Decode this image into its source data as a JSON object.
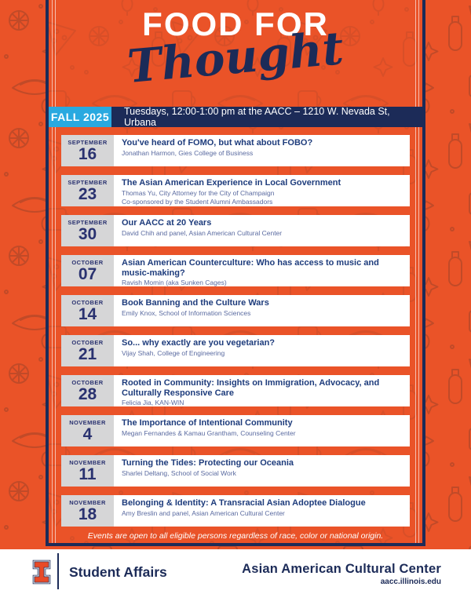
{
  "header": {
    "title_line1": "FOOD FOR",
    "title_line2": "Thought"
  },
  "schedule_bar": {
    "term": "FALL 2025",
    "details": "Tuesdays, 12:00-1:00 pm at the AACC – 1210 W. Nevada St, Urbana"
  },
  "events": [
    {
      "month": "SEPTEMBER",
      "day": "16",
      "title": "You've heard of FOMO, but what about FOBO?",
      "speakers": [
        "Jonathan Harmon, Gies College of Business"
      ]
    },
    {
      "month": "SEPTEMBER",
      "day": "23",
      "title": "The Asian American Experience in Local Government",
      "speakers": [
        "Thomas Yu, City Attorney for the City of Champaign",
        "Co-sponsored by the Student Alumni Ambassadors"
      ]
    },
    {
      "month": "SEPTEMBER",
      "day": "30",
      "title": "Our AACC at 20 Years",
      "speakers": [
        "David Chih and panel, Asian American Cultural Center"
      ]
    },
    {
      "month": "OCTOBER",
      "day": "07",
      "title": "Asian American Counterculture: Who has access to music and music-making?",
      "speakers": [
        "Ravish Momin (aka Sunken Cages)"
      ]
    },
    {
      "month": "OCTOBER",
      "day": "14",
      "title": "Book Banning and the Culture Wars",
      "speakers": [
        "Emily Knox, School of Information Sciences"
      ]
    },
    {
      "month": "OCTOBER",
      "day": "21",
      "title": "So... why exactly are you vegetarian?",
      "speakers": [
        "Vijay Shah, College of Engineering"
      ]
    },
    {
      "month": "OCTOBER",
      "day": "28",
      "title": "Rooted in Community: Insights on Immigration, Advocacy, and Culturally Responsive Care",
      "speakers": [
        "Felicia Jia, KAN-WIN"
      ]
    },
    {
      "month": "NOVEMBER",
      "day": "4",
      "title": "The Importance of Intentional Community",
      "speakers": [
        "Megan Fernandes & Kamau Grantham, Counseling Center"
      ]
    },
    {
      "month": "NOVEMBER",
      "day": "11",
      "title": "Turning the Tides: Protecting our Oceania",
      "speakers": [
        "Sharlei Deltang, School of Social Work"
      ]
    },
    {
      "month": "NOVEMBER",
      "day": "18",
      "title": "Belonging & Identity: A Transracial Asian Adoptee Dialogue",
      "speakers": [
        "Amy Breslin and panel, Asian American Cultural Center"
      ]
    }
  ],
  "footnote": "Events are open to all eligible persons regardless of race, color or national origin.",
  "footer": {
    "student_affairs": "Student Affairs",
    "center_name": "Asian American Cultural Center",
    "website": "aacc.illinois.edu"
  },
  "colors": {
    "orange": "#EA5328",
    "doodle_orange": "#C14A28",
    "navy": "#1C2B58",
    "title_navy": "#1E3C7C",
    "date_navy": "#2A3270",
    "speaker_blue": "#5A6AA0",
    "cyan": "#29A9E0",
    "date_gray": "#D6D6D7"
  }
}
